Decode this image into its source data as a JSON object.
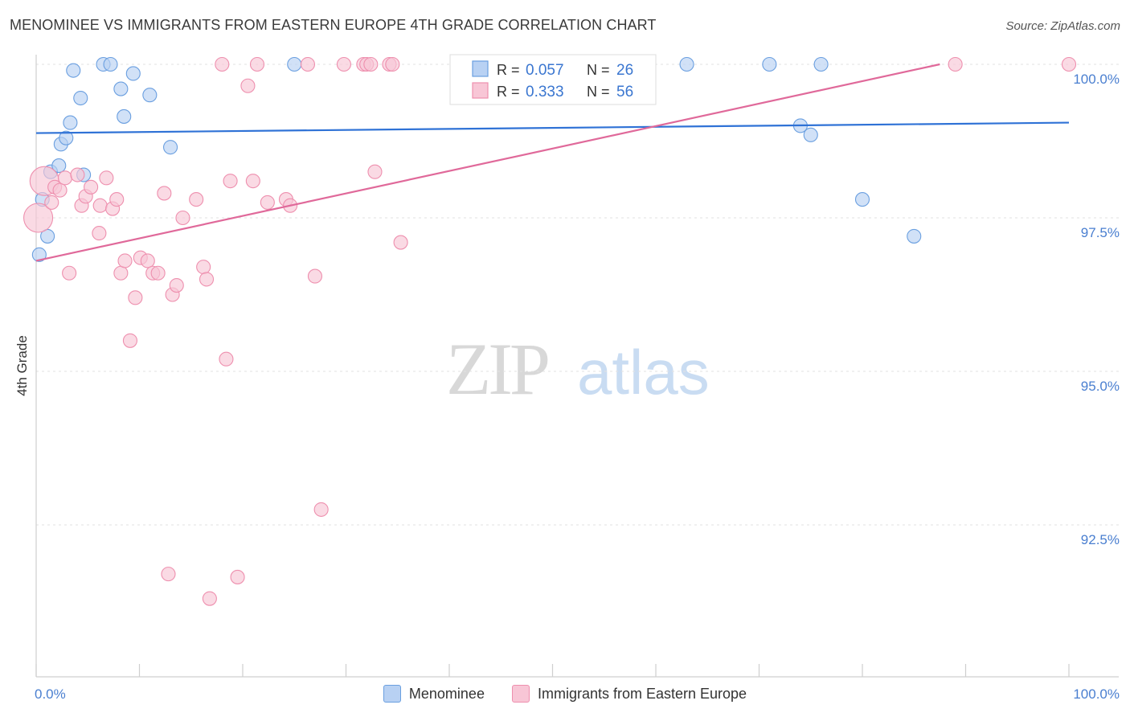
{
  "title": "MENOMINEE VS IMMIGRANTS FROM EASTERN EUROPE 4TH GRADE CORRELATION CHART",
  "source": "Source: ZipAtlas.com",
  "watermark": {
    "zip": "ZIP",
    "atlas": "atlas"
  },
  "chart_data": {
    "type": "scatter",
    "title": "MENOMINEE VS IMMIGRANTS FROM EASTERN EUROPE 4TH GRADE CORRELATION CHART",
    "xlabel": "",
    "ylabel": "4th Grade",
    "xlim": [
      0,
      100
    ],
    "ylim": [
      90.0,
      100.35
    ],
    "x_tick_labels": [
      "0.0%",
      "100.0%"
    ],
    "y_ticks": [
      92.5,
      95.0,
      97.5,
      100.0
    ],
    "y_tick_labels": [
      "92.5%",
      "95.0%",
      "97.5%",
      "100.0%"
    ],
    "grid": true,
    "legend_position": "top-center",
    "series": [
      {
        "name": "Menominee",
        "color": "#6a9fe0",
        "fill": "#b8d1f3",
        "line_color": "#2f72d6",
        "R": "0.057",
        "N": "26",
        "trend": [
          [
            0,
            98.88
          ],
          [
            100,
            99.05
          ]
        ],
        "points": [
          [
            0.3,
            96.9
          ],
          [
            0.6,
            97.8
          ],
          [
            1.1,
            97.2
          ],
          [
            1.4,
            98.25
          ],
          [
            2.2,
            98.35
          ],
          [
            2.4,
            98.7
          ],
          [
            2.9,
            98.8
          ],
          [
            3.3,
            99.05
          ],
          [
            3.6,
            99.9
          ],
          [
            4.3,
            99.45
          ],
          [
            4.6,
            98.2
          ],
          [
            6.5,
            100.0
          ],
          [
            7.2,
            100.0
          ],
          [
            8.2,
            99.6
          ],
          [
            8.5,
            99.15
          ],
          [
            9.4,
            99.85
          ],
          [
            11.0,
            99.5
          ],
          [
            13.0,
            98.65
          ],
          [
            25.0,
            100.0
          ],
          [
            63.0,
            100.0
          ],
          [
            71.0,
            100.0
          ],
          [
            74.0,
            99.0
          ],
          [
            75.0,
            98.85
          ],
          [
            76.0,
            100.0
          ],
          [
            80.0,
            97.8
          ],
          [
            85.0,
            97.2
          ]
        ]
      },
      {
        "name": "Immigrants from Eastern Europe",
        "color": "#ee8fae",
        "fill": "#f8c6d6",
        "line_color": "#e0699a",
        "R": "0.333",
        "N": "56",
        "trend": [
          [
            0,
            96.8
          ],
          [
            87.5,
            100.0
          ]
        ],
        "points": [
          [
            0.2,
            97.5
          ],
          [
            0.8,
            98.1
          ],
          [
            1.5,
            97.75
          ],
          [
            1.8,
            98.0
          ],
          [
            2.3,
            97.95
          ],
          [
            2.8,
            98.15
          ],
          [
            3.2,
            96.6
          ],
          [
            4.0,
            98.2
          ],
          [
            4.4,
            97.7
          ],
          [
            4.8,
            97.85
          ],
          [
            5.3,
            98.0
          ],
          [
            6.1,
            97.25
          ],
          [
            6.2,
            97.7
          ],
          [
            6.8,
            98.15
          ],
          [
            7.4,
            97.65
          ],
          [
            7.8,
            97.8
          ],
          [
            8.2,
            96.6
          ],
          [
            8.6,
            96.8
          ],
          [
            9.1,
            95.5
          ],
          [
            9.6,
            96.2
          ],
          [
            10.1,
            96.85
          ],
          [
            10.8,
            96.8
          ],
          [
            11.3,
            96.6
          ],
          [
            11.8,
            96.6
          ],
          [
            12.4,
            97.9
          ],
          [
            12.8,
            91.7
          ],
          [
            13.2,
            96.25
          ],
          [
            13.6,
            96.4
          ],
          [
            14.2,
            97.5
          ],
          [
            15.5,
            97.8
          ],
          [
            16.2,
            96.7
          ],
          [
            16.5,
            96.5
          ],
          [
            16.8,
            91.3
          ],
          [
            18.0,
            100.0
          ],
          [
            18.4,
            95.2
          ],
          [
            18.8,
            98.1
          ],
          [
            19.5,
            91.65
          ],
          [
            20.5,
            99.65
          ],
          [
            21.0,
            98.1
          ],
          [
            21.4,
            100.0
          ],
          [
            22.4,
            97.75
          ],
          [
            24.2,
            97.8
          ],
          [
            24.6,
            97.7
          ],
          [
            26.3,
            100.0
          ],
          [
            27.0,
            96.55
          ],
          [
            27.6,
            92.75
          ],
          [
            29.8,
            100.0
          ],
          [
            31.7,
            100.0
          ],
          [
            32.0,
            100.0
          ],
          [
            32.4,
            100.0
          ],
          [
            32.8,
            98.25
          ],
          [
            34.2,
            100.0
          ],
          [
            34.5,
            100.0
          ],
          [
            35.3,
            97.1
          ],
          [
            89.0,
            100.0
          ],
          [
            100.0,
            100.0
          ]
        ]
      }
    ]
  },
  "legend": {
    "r_label": "R =",
    "n_label": "N =",
    "rows": [
      {
        "r": "0.057",
        "n": "26"
      },
      {
        "r": "0.333",
        "n": "56"
      }
    ]
  },
  "bottom_legend": [
    {
      "label": "Menominee"
    },
    {
      "label": "Immigrants from Eastern Europe"
    }
  ]
}
